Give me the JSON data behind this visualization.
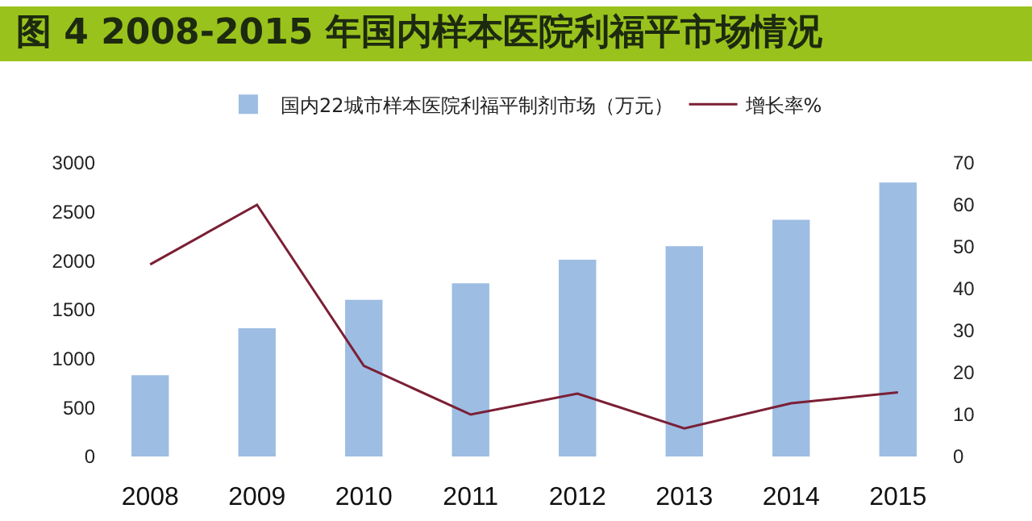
{
  "chart_data": {
    "type": "bar",
    "title": "图 4  2008-2015 年国内样本医院利福平市场情况",
    "categories": [
      "2008",
      "2009",
      "2010",
      "2011",
      "2012",
      "2013",
      "2014",
      "2015"
    ],
    "series": [
      {
        "name": "国内22城市样本医院利福平制剂市场（万元）",
        "color": "#9dbde3",
        "values": [
          830,
          1310,
          1600,
          1770,
          2010,
          2150,
          2420,
          2800
        ]
      },
      {
        "name": "增长率%",
        "type": "line",
        "axis": "y2",
        "color": "#7b1f35",
        "values": [
          45.8,
          60,
          21.6,
          10,
          15,
          6.7,
          12.7,
          15.3
        ]
      }
    ],
    "ylim": [
      0,
      3000
    ],
    "yticks": [
      0,
      500,
      1000,
      1500,
      2000,
      2500,
      3000
    ],
    "y2lim": [
      0,
      70
    ],
    "y2ticks": [
      0,
      10,
      20,
      30,
      40,
      50,
      60,
      70
    ],
    "grid": false,
    "legend": "top",
    "marker": "none",
    "line_style": "solid"
  }
}
